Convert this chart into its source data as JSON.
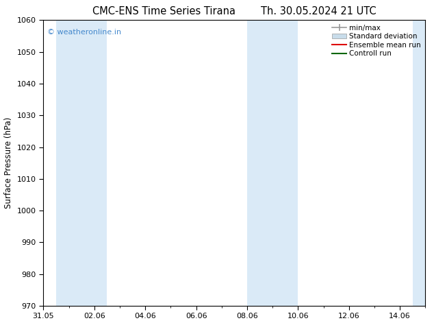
{
  "title_left": "CMC-ENS Time Series Tirana",
  "title_right": "Th. 30.05.2024 21 UTC",
  "ylabel": "Surface Pressure (hPa)",
  "ylim": [
    970,
    1060
  ],
  "yticks": [
    970,
    980,
    990,
    1000,
    1010,
    1020,
    1030,
    1040,
    1050,
    1060
  ],
  "xlim_start": 0.0,
  "xlim_end": 15.0,
  "xtick_labels": [
    "31.05",
    "02.06",
    "04.06",
    "06.06",
    "08.06",
    "10.06",
    "12.06",
    "14.06"
  ],
  "xtick_positions": [
    0,
    2,
    4,
    6,
    8,
    10,
    12,
    14
  ],
  "shaded_bands": [
    {
      "x_start": 0.5,
      "x_end": 2.5
    },
    {
      "x_start": 8.0,
      "x_end": 10.0
    },
    {
      "x_start": 14.5,
      "x_end": 15.0
    }
  ],
  "band_color": "#daeaf7",
  "background_color": "#ffffff",
  "watermark_text": "© weatheronline.in",
  "watermark_color": "#4488cc",
  "legend_entries": [
    {
      "label": "min/max",
      "color": "#999999",
      "lw": 1.2,
      "type": "errorbar"
    },
    {
      "label": "Standard deviation",
      "color": "#c8dcea",
      "lw": 6,
      "type": "fill"
    },
    {
      "label": "Ensemble mean run",
      "color": "#dd0000",
      "lw": 1.5,
      "type": "line"
    },
    {
      "label": "Controll run",
      "color": "#006600",
      "lw": 1.5,
      "type": "line"
    }
  ],
  "title_fontsize": 10.5,
  "axis_label_fontsize": 8.5,
  "tick_fontsize": 8,
  "legend_fontsize": 7.5,
  "watermark_fontsize": 8
}
